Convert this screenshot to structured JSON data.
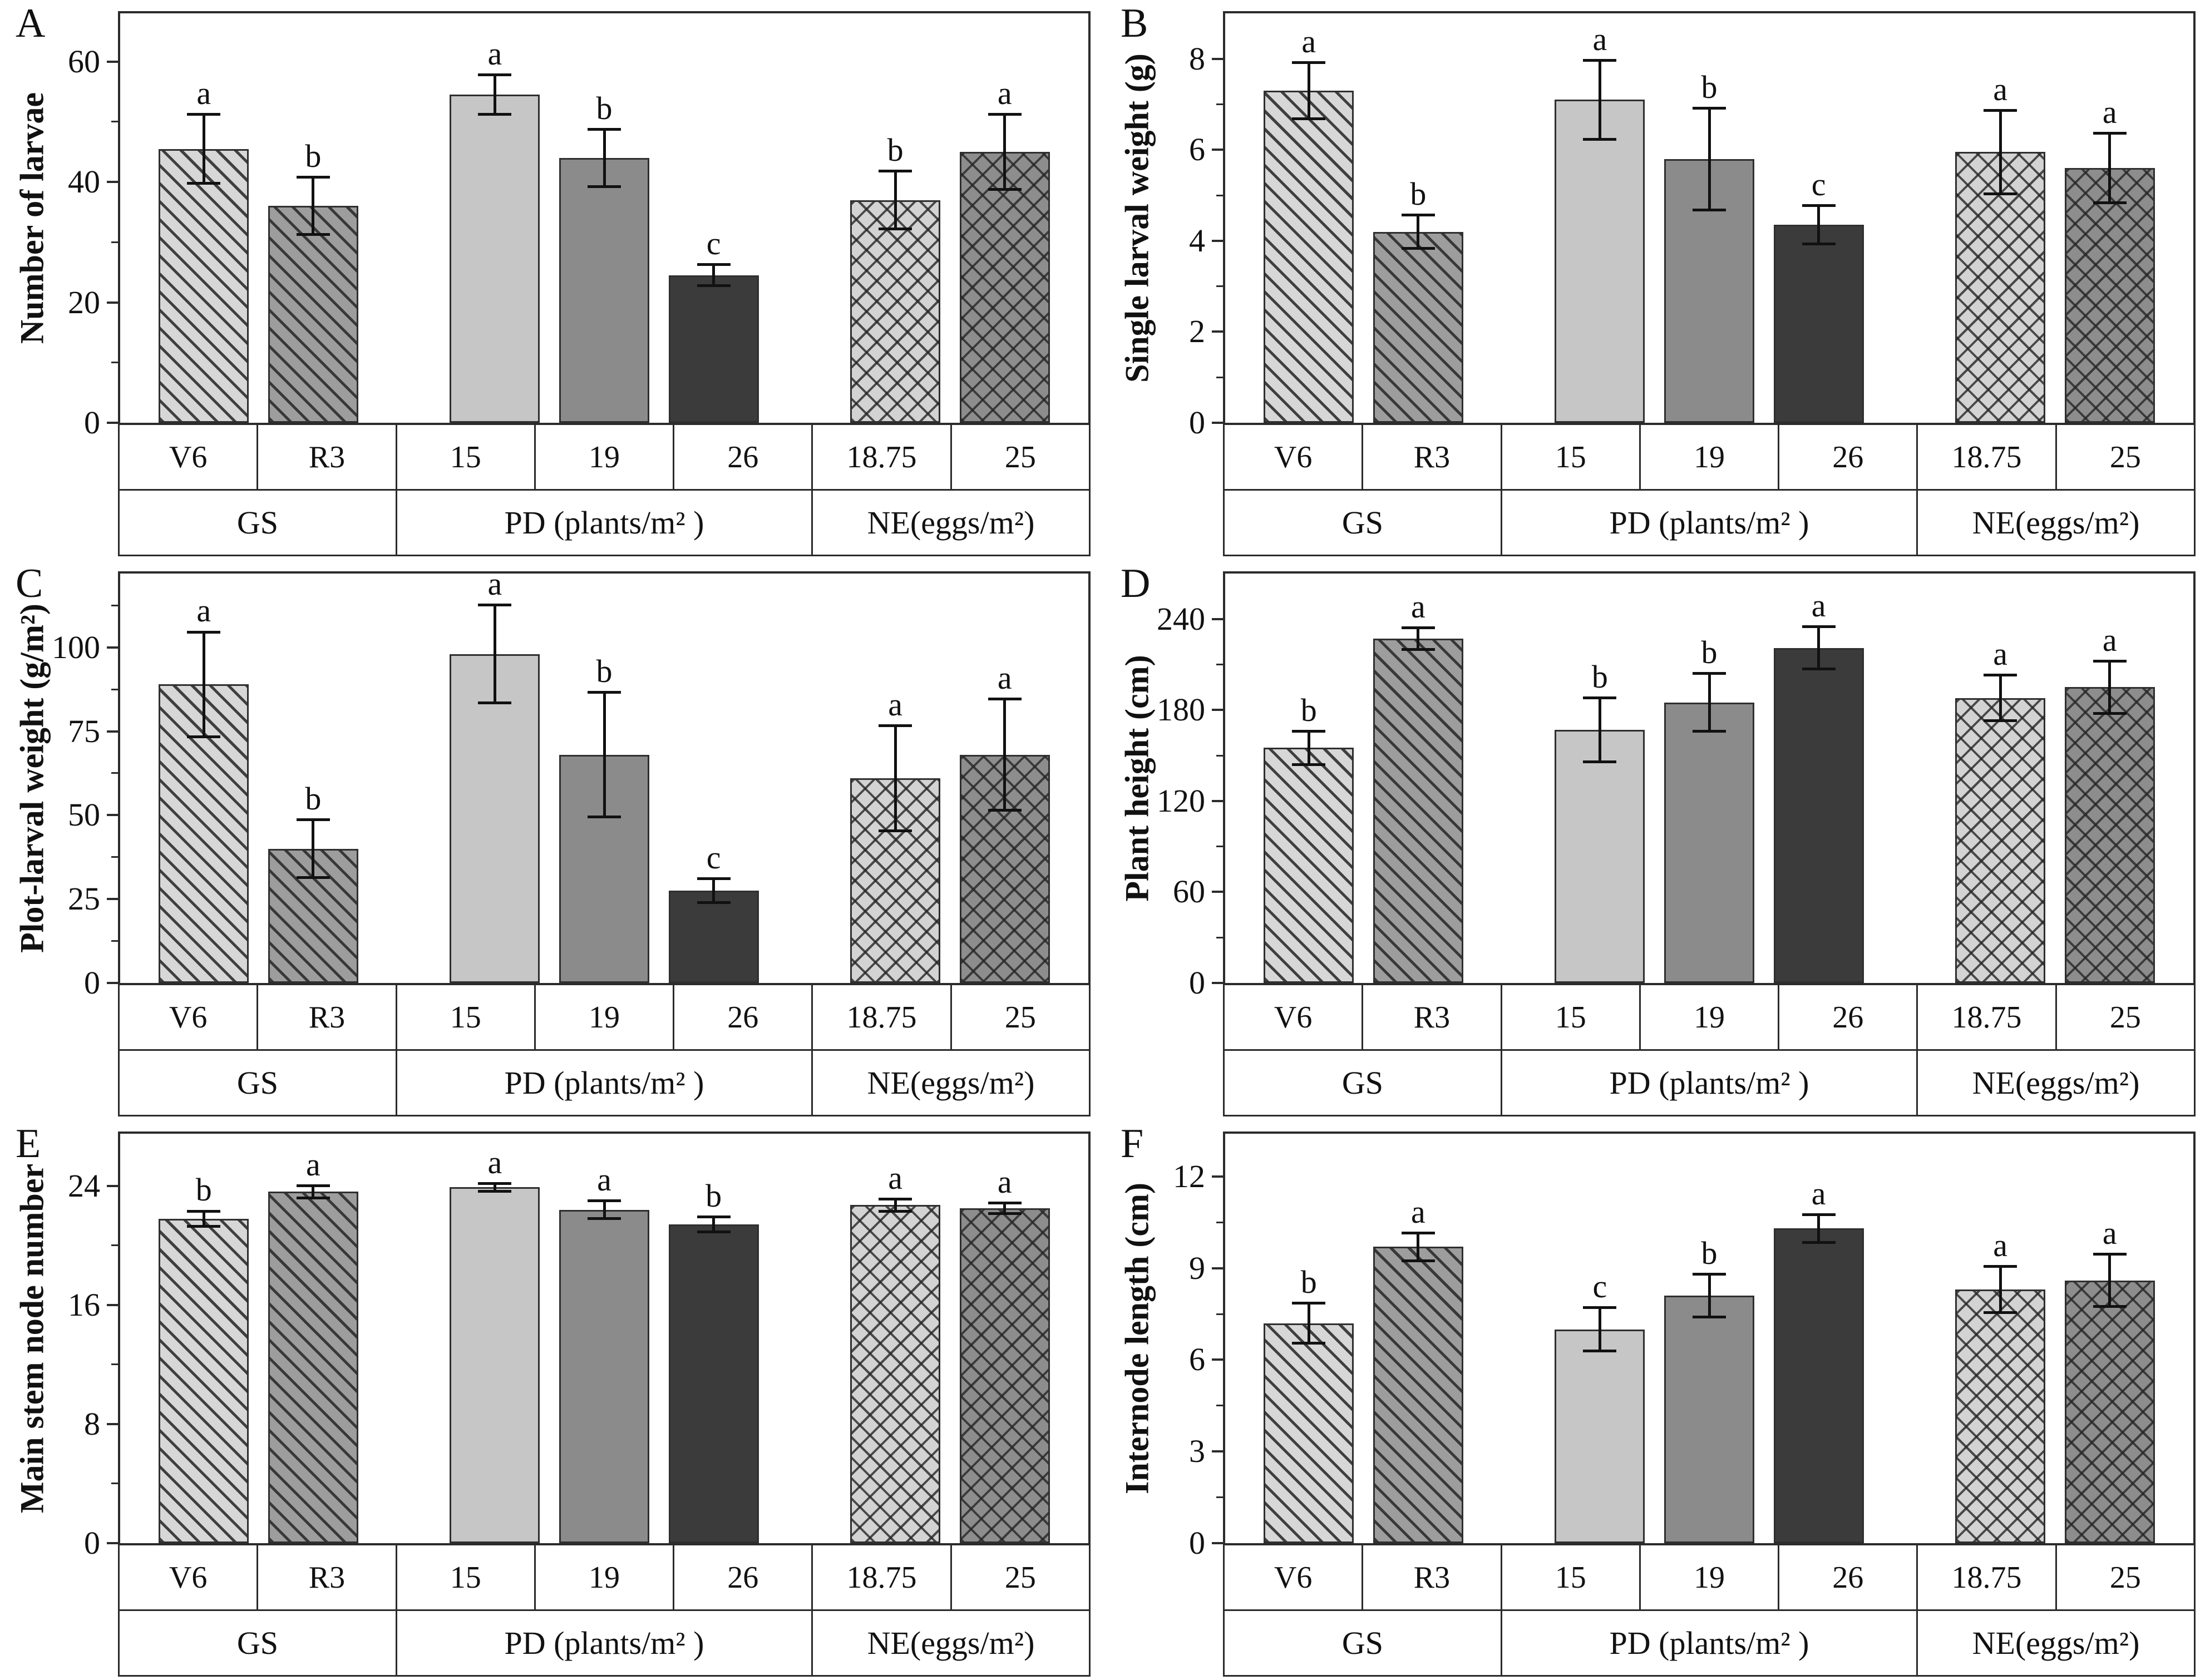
{
  "figure": {
    "background": "#ffffff",
    "axis_color": "#2b2b2b",
    "text_color": "#111111",
    "error_bar_color": "#111111"
  },
  "bar_styles": [
    {
      "category": "V6",
      "fill": "#d7d7d7",
      "pattern": "diagonal"
    },
    {
      "category": "R3",
      "fill": "#9d9d9d",
      "pattern": "diagonal"
    },
    {
      "category": "15",
      "fill": "#c6c6c6",
      "pattern": "solid"
    },
    {
      "category": "19",
      "fill": "#8b8b8b",
      "pattern": "solid"
    },
    {
      "category": "26",
      "fill": "#3b3b3b",
      "pattern": "solid"
    },
    {
      "category": "18.75",
      "fill": "#d3d3d3",
      "pattern": "crosshatch"
    },
    {
      "category": "25",
      "fill": "#8d8d8d",
      "pattern": "crosshatch"
    }
  ],
  "chart_data": [
    {
      "panel": "A",
      "type": "bar",
      "ylabel": "Number of larvae",
      "yticks": [
        0,
        20,
        40,
        60
      ],
      "ymax": 68,
      "categories": [
        "V6",
        "R3",
        "15",
        "19",
        "26",
        "18.75",
        "25"
      ],
      "values": [
        45.5,
        36,
        54.5,
        44,
        24.5,
        37,
        45
      ],
      "errors": [
        6,
        5,
        3.5,
        5,
        2,
        5,
        6.5
      ],
      "sig_letters": [
        "a",
        "b",
        "a",
        "b",
        "c",
        "b",
        "a"
      ],
      "x_groups": [
        {
          "label": "GS",
          "span": 2
        },
        {
          "label": "PD (plants/m² )",
          "span": 3
        },
        {
          "label": "NE(eggs/m²)",
          "span": 2
        }
      ]
    },
    {
      "panel": "B",
      "type": "bar",
      "ylabel": "Single larval weight (g)",
      "yticks": [
        0,
        2,
        4,
        6,
        8
      ],
      "ymax": 9,
      "categories": [
        "V6",
        "R3",
        "15",
        "19",
        "26",
        "18.75",
        "25"
      ],
      "values": [
        7.3,
        4.2,
        7.1,
        5.8,
        4.35,
        5.95,
        5.6
      ],
      "errors": [
        0.65,
        0.4,
        0.9,
        1.15,
        0.45,
        0.95,
        0.8
      ],
      "sig_letters": [
        "a",
        "b",
        "a",
        "b",
        "c",
        "a",
        "a"
      ],
      "x_groups": [
        {
          "label": "GS",
          "span": 2
        },
        {
          "label": "PD (plants/m² )",
          "span": 3
        },
        {
          "label": "NE(eggs/m²)",
          "span": 2
        }
      ]
    },
    {
      "panel": "C",
      "type": "bar",
      "ylabel": "Plot-larval weight (g/m²)",
      "yticks": [
        0,
        25,
        50,
        75,
        100
      ],
      "ymax": 122,
      "categories": [
        "V6",
        "R3",
        "15",
        "19",
        "26",
        "18.75",
        "25"
      ],
      "values": [
        89,
        40,
        98,
        68,
        27.5,
        61,
        68
      ],
      "errors": [
        16,
        9,
        15,
        19,
        4,
        16,
        17
      ],
      "sig_letters": [
        "a",
        "b",
        "a",
        "b",
        "c",
        "a",
        "a"
      ],
      "x_groups": [
        {
          "label": "GS",
          "span": 2
        },
        {
          "label": "PD (plants/m² )",
          "span": 3
        },
        {
          "label": "NE(eggs/m²)",
          "span": 2
        }
      ]
    },
    {
      "panel": "D",
      "type": "bar",
      "ylabel": "Plant height (cm)",
      "yticks": [
        0,
        60,
        120,
        180,
        240
      ],
      "ymax": 270,
      "categories": [
        "V6",
        "R3",
        "15",
        "19",
        "26",
        "18.75",
        "25"
      ],
      "values": [
        155,
        227,
        167,
        185,
        221,
        188,
        195
      ],
      "errors": [
        12,
        8,
        22,
        20,
        15,
        16,
        18
      ],
      "sig_letters": [
        "b",
        "a",
        "b",
        "b",
        "a",
        "a",
        "a"
      ],
      "x_groups": [
        {
          "label": "GS",
          "span": 2
        },
        {
          "label": "PD (plants/m² )",
          "span": 3
        },
        {
          "label": "NE(eggs/m²)",
          "span": 2
        }
      ]
    },
    {
      "panel": "E",
      "type": "bar",
      "ylabel": "Main stem node number",
      "yticks": [
        0,
        8,
        16,
        24
      ],
      "ymax": 27.5,
      "categories": [
        "V6",
        "R3",
        "15",
        "19",
        "26",
        "18.75",
        "25"
      ],
      "values": [
        21.8,
        23.6,
        23.9,
        22.4,
        21.4,
        22.7,
        22.5
      ],
      "errors": [
        0.6,
        0.5,
        0.35,
        0.7,
        0.6,
        0.5,
        0.45
      ],
      "sig_letters": [
        "b",
        "a",
        "a",
        "a",
        "b",
        "a",
        "a"
      ],
      "x_groups": [
        {
          "label": "GS",
          "span": 2
        },
        {
          "label": "PD (plants/m² )",
          "span": 3
        },
        {
          "label": "NE(eggs/m²)",
          "span": 2
        }
      ]
    },
    {
      "panel": "F",
      "type": "bar",
      "ylabel": "Internode length (cm)",
      "yticks": [
        0,
        3,
        6,
        9,
        12
      ],
      "ymax": 13.4,
      "categories": [
        "V6",
        "R3",
        "15",
        "19",
        "26",
        "18.75",
        "25"
      ],
      "values": [
        7.2,
        9.7,
        7.0,
        8.1,
        10.3,
        8.3,
        8.6
      ],
      "errors": [
        0.7,
        0.5,
        0.75,
        0.75,
        0.5,
        0.8,
        0.9
      ],
      "sig_letters": [
        "b",
        "a",
        "c",
        "b",
        "a",
        "a",
        "a"
      ],
      "x_groups": [
        {
          "label": "GS",
          "span": 2
        },
        {
          "label": "PD (plants/m² )",
          "span": 3
        },
        {
          "label": "NE(eggs/m²)",
          "span": 2
        }
      ]
    }
  ]
}
